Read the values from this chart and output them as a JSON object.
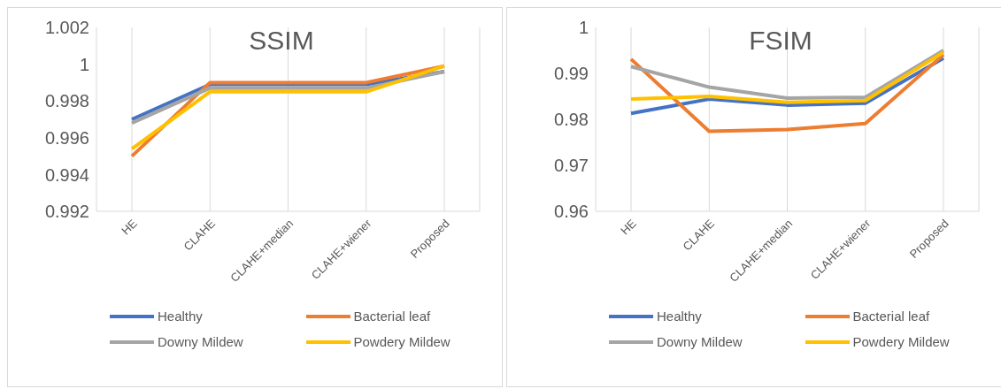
{
  "chart_data": [
    {
      "type": "line",
      "title": "SSIM",
      "categories": [
        "HE",
        "CLAHE",
        "CLAHE+median",
        "CLAHE+wiener",
        "Proposed"
      ],
      "series": [
        {
          "name": "Healthy",
          "color": "#4472c4",
          "values": [
            0.997,
            0.9989,
            0.9989,
            0.9989,
            0.9996
          ]
        },
        {
          "name": "Bacterial leaf",
          "color": "#ed7d31",
          "values": [
            0.995,
            0.999,
            0.999,
            0.999,
            0.9999
          ]
        },
        {
          "name": "Downy Mildew",
          "color": "#a5a5a5",
          "values": [
            0.9968,
            0.9987,
            0.9987,
            0.9987,
            0.9996
          ]
        },
        {
          "name": "Powdery Mildew",
          "color": "#ffc000",
          "values": [
            0.9954,
            0.9985,
            0.9985,
            0.9985,
            0.9999
          ]
        }
      ],
      "ylim": [
        0.992,
        1.002
      ],
      "yticks": [
        0.992,
        0.994,
        0.996,
        0.998,
        1,
        1.002
      ],
      "grid": "x",
      "legend": "bottom",
      "marker": "none",
      "line_style": "solid"
    },
    {
      "type": "line",
      "title": "FSIM",
      "categories": [
        "HE",
        "CLAHE",
        "CLAHE+median",
        "CLAHE+wiener",
        "Proposed"
      ],
      "series": [
        {
          "name": "Healthy",
          "color": "#4472c4",
          "values": [
            0.9813,
            0.9844,
            0.9831,
            0.9835,
            0.9933
          ]
        },
        {
          "name": "Bacterial leaf",
          "color": "#ed7d31",
          "values": [
            0.9931,
            0.9774,
            0.9778,
            0.9791,
            0.9941
          ]
        },
        {
          "name": "Downy Mildew",
          "color": "#a5a5a5",
          "values": [
            0.9915,
            0.987,
            0.9846,
            0.9848,
            0.995
          ]
        },
        {
          "name": "Powdery Mildew",
          "color": "#ffc000",
          "values": [
            0.9844,
            0.985,
            0.9837,
            0.9841,
            0.9946
          ]
        }
      ],
      "ylim": [
        0.96,
        1
      ],
      "yticks": [
        0.96,
        0.97,
        0.98,
        0.99,
        1
      ],
      "grid": "x",
      "legend": "bottom",
      "marker": "none",
      "line_style": "solid"
    }
  ]
}
